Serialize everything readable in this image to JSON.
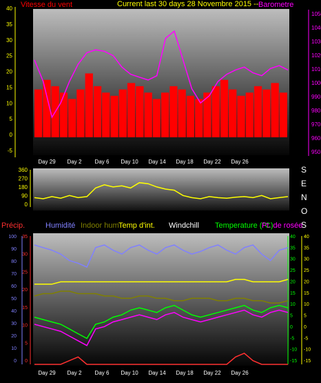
{
  "header": {
    "wind_label": "Vitesse du vent",
    "title_text": "Current last 30 days 28 Novembre 2015 --",
    "baro_label": "Barometre"
  },
  "direction_letters": [
    "S",
    "E",
    "N",
    "O",
    "S"
  ],
  "bottom_legend": {
    "precip": "Précip.",
    "humidity": "Humidité",
    "indoor_hum": "Indoor hum",
    "temp_int": "Temp d'int.",
    "windchill": "Windchill",
    "temperature": "Temperature (°C)",
    "dewpoint": "Pt. de rosée"
  },
  "x_ticks": [
    "Day 29",
    "Day 2",
    "Day 6",
    "Day 10",
    "Day 14",
    "Day 18",
    "Day 22",
    "Day 26"
  ],
  "colors": {
    "wind_axis": "#ffff00",
    "baro_axis": "#ff00ff",
    "precip": "#ff3030",
    "humidity": "#8080ff",
    "indoor_hum": "#808000",
    "temp_int": "#ffff00",
    "windchill": "#ffffff",
    "temperature": "#00ff00",
    "dewpoint": "#ff00ff"
  },
  "chart_data": [
    {
      "type": "line",
      "panel": "wind-barometer",
      "yleft_ticks": [
        "40",
        "35",
        "30",
        "25",
        "20",
        "15",
        "10",
        "5",
        "0",
        "-5"
      ],
      "yleft_range": [
        -5,
        40
      ],
      "yright_ticks": [
        "1050",
        "1040",
        "1030",
        "1020",
        "1010",
        "1000",
        "990",
        "980",
        "970",
        "960",
        "950"
      ],
      "yright_range": [
        950,
        1050
      ],
      "series": [
        {
          "name": "Vitesse du vent",
          "color": "#ff0000",
          "values": [
            15,
            18,
            16,
            14,
            12,
            15,
            20,
            16,
            14,
            13,
            15,
            17,
            16,
            14,
            12,
            14,
            16,
            15,
            13,
            12,
            14,
            16,
            18,
            15,
            13,
            14,
            16,
            15,
            17,
            14
          ]
        },
        {
          "name": "Barometre",
          "color": "#ff00ff",
          "values": [
            1015,
            1000,
            975,
            985,
            1000,
            1012,
            1020,
            1022,
            1021,
            1018,
            1010,
            1005,
            1003,
            1001,
            1004,
            1030,
            1035,
            1015,
            995,
            985,
            990,
            1000,
            1005,
            1008,
            1010,
            1006,
            1004,
            1009,
            1011,
            1008
          ]
        }
      ]
    },
    {
      "type": "line",
      "panel": "wind-direction",
      "y_ticks": [
        "360",
        "270",
        "180",
        "90",
        "0"
      ],
      "y_range": [
        0,
        360
      ],
      "series": [
        {
          "name": "",
          "color": "#ffff00",
          "values": [
            100,
            90,
            110,
            95,
            120,
            100,
            110,
            190,
            220,
            200,
            210,
            190,
            240,
            230,
            200,
            180,
            170,
            120,
            100,
            90,
            110,
            100,
            95,
            105,
            110,
            100,
            120,
            90,
            100,
            110
          ]
        }
      ]
    },
    {
      "type": "line",
      "panel": "temperature-humidity",
      "y_hum_ticks": [
        "100",
        "90",
        "80",
        "70",
        "60",
        "50",
        "40",
        "30",
        "20",
        "10",
        "0"
      ],
      "y_precip_ticks": [
        "35",
        "30",
        "25",
        "20",
        "15",
        "10",
        "5",
        "0"
      ],
      "y_temp_left_ticks": [
        "40",
        "35",
        "30",
        "25",
        "20",
        "15",
        "10",
        "5",
        "0",
        "-5",
        "-10",
        "-15"
      ],
      "y_temp_right_ticks": [
        "40",
        "35",
        "30",
        "25",
        "20",
        "15",
        "10",
        "5",
        "0",
        "-5",
        "-10",
        "-15"
      ],
      "temp_range": [
        -15,
        40
      ],
      "series": [
        {
          "name": "Humidité",
          "color": "#8080ff",
          "values": [
            92,
            90,
            88,
            85,
            80,
            78,
            75,
            90,
            92,
            88,
            85,
            90,
            92,
            88,
            85,
            90,
            92,
            88,
            85,
            87,
            90,
            92,
            88,
            85,
            90,
            92,
            85,
            80,
            88,
            90
          ]
        },
        {
          "name": "Indoor hum",
          "color": "#808000",
          "values": [
            14,
            15,
            15,
            16,
            16,
            15,
            15,
            15,
            14,
            14,
            13,
            13,
            14,
            14,
            13,
            13,
            12,
            12,
            13,
            13,
            13,
            12,
            12,
            13,
            13,
            12,
            12,
            11,
            11,
            12
          ]
        },
        {
          "name": "Temp d'int.",
          "color": "#ffff00",
          "values": [
            19,
            19,
            19,
            20,
            20,
            20,
            20,
            20,
            20,
            20,
            20,
            20,
            20,
            20,
            20,
            20,
            20,
            20,
            20,
            20,
            20,
            20,
            20,
            21,
            21,
            20,
            20,
            20,
            20,
            21
          ]
        },
        {
          "name": "Temperature (°C)",
          "color": "#00ff00",
          "values": [
            5,
            4,
            3,
            2,
            0,
            -2,
            -4,
            2,
            3,
            5,
            6,
            8,
            9,
            8,
            7,
            9,
            10,
            8,
            6,
            5,
            6,
            7,
            8,
            9,
            10,
            8,
            7,
            9,
            10,
            9
          ]
        },
        {
          "name": "Pt. de rosée",
          "color": "#ff00ff",
          "values": [
            2,
            1,
            0,
            -1,
            -3,
            -5,
            -7,
            0,
            1,
            3,
            4,
            5,
            6,
            5,
            4,
            6,
            7,
            5,
            4,
            3,
            4,
            5,
            6,
            7,
            8,
            6,
            5,
            7,
            8,
            7
          ]
        },
        {
          "name": "Précip.",
          "color": "#ff3030",
          "values": [
            0,
            0,
            0,
            0,
            1,
            2,
            0,
            0,
            0,
            0,
            0,
            0,
            0,
            0,
            0,
            0,
            0,
            0,
            0,
            0,
            0,
            0,
            0,
            2,
            3,
            1,
            0,
            0,
            0,
            0
          ]
        }
      ]
    }
  ]
}
